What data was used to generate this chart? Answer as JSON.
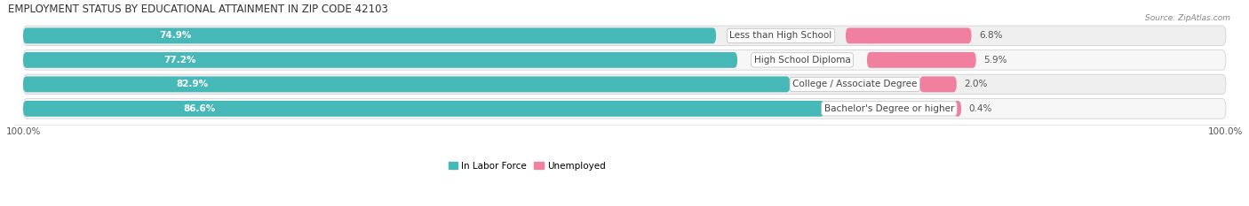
{
  "title": "EMPLOYMENT STATUS BY EDUCATIONAL ATTAINMENT IN ZIP CODE 42103",
  "source": "Source: ZipAtlas.com",
  "categories": [
    "Less than High School",
    "High School Diploma",
    "College / Associate Degree",
    "Bachelor's Degree or higher"
  ],
  "in_labor_force": [
    74.9,
    77.2,
    82.9,
    86.6
  ],
  "unemployed": [
    6.8,
    5.9,
    2.0,
    0.4
  ],
  "labor_force_color": "#46b8b8",
  "unemployed_color": "#f07fa0",
  "bar_bg_color": "#e0e0e0",
  "row_bg_even": "#efefef",
  "row_bg_odd": "#f7f7f7",
  "title_fontsize": 8.5,
  "label_fontsize": 7.5,
  "value_fontsize": 7.5,
  "tick_fontsize": 7.5,
  "source_fontsize": 6.5,
  "x_left_label": "100.0%",
  "x_right_label": "100.0%",
  "figsize": [
    14.06,
    2.33
  ]
}
